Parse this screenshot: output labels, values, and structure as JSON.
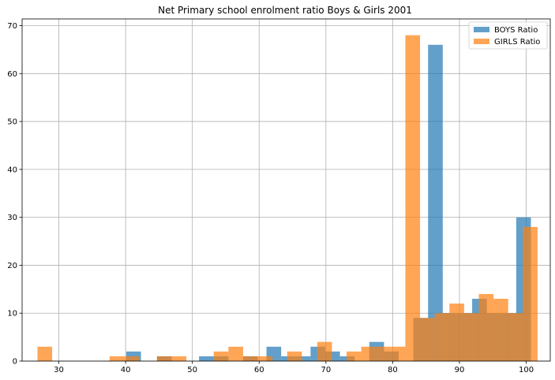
{
  "chart_data": {
    "type": "bar",
    "title": "Net Primary school enrolment ratio Boys & Girls 2001",
    "xlabel": "",
    "ylabel": "",
    "xlim": [
      24.5,
      103.6
    ],
    "ylim": [
      0,
      71.4
    ],
    "xticks": [
      30,
      40,
      50,
      60,
      70,
      80,
      90,
      100
    ],
    "yticks": [
      0,
      10,
      20,
      30,
      40,
      50,
      60,
      70
    ],
    "grid": true,
    "legend_position": "top-right",
    "bin_width": 2.2,
    "series": [
      {
        "name": "BOYS Ratio",
        "color": "#1f77b4",
        "opacity": 0.7,
        "bins": [
          {
            "x": 40.1,
            "value": 2
          },
          {
            "x": 44.7,
            "value": 1
          },
          {
            "x": 51.0,
            "value": 1
          },
          {
            "x": 53.2,
            "value": 1
          },
          {
            "x": 57.6,
            "value": 1
          },
          {
            "x": 61.1,
            "value": 3
          },
          {
            "x": 63.3,
            "value": 1
          },
          {
            "x": 65.5,
            "value": 1
          },
          {
            "x": 67.7,
            "value": 3
          },
          {
            "x": 69.9,
            "value": 2
          },
          {
            "x": 72.1,
            "value": 1
          },
          {
            "x": 76.5,
            "value": 4
          },
          {
            "x": 78.7,
            "value": 2
          },
          {
            "x": 83.1,
            "value": 9
          },
          {
            "x": 85.3,
            "value": 66
          },
          {
            "x": 87.5,
            "value": 10
          },
          {
            "x": 89.7,
            "value": 10
          },
          {
            "x": 91.9,
            "value": 13
          },
          {
            "x": 94.1,
            "value": 10
          },
          {
            "x": 96.3,
            "value": 10
          },
          {
            "x": 98.5,
            "value": 30
          }
        ]
      },
      {
        "name": "GIRLS Ratio",
        "color": "#ff7f0e",
        "opacity": 0.7,
        "bins": [
          {
            "x": 26.8,
            "value": 3
          },
          {
            "x": 37.6,
            "value": 1
          },
          {
            "x": 39.8,
            "value": 1
          },
          {
            "x": 44.7,
            "value": 1
          },
          {
            "x": 46.9,
            "value": 1
          },
          {
            "x": 53.2,
            "value": 2
          },
          {
            "x": 55.4,
            "value": 3
          },
          {
            "x": 57.6,
            "value": 1
          },
          {
            "x": 59.8,
            "value": 1
          },
          {
            "x": 64.2,
            "value": 2
          },
          {
            "x": 68.7,
            "value": 4
          },
          {
            "x": 73.1,
            "value": 2
          },
          {
            "x": 75.3,
            "value": 3
          },
          {
            "x": 77.5,
            "value": 3
          },
          {
            "x": 79.7,
            "value": 3
          },
          {
            "x": 81.9,
            "value": 68
          },
          {
            "x": 84.1,
            "value": 9
          },
          {
            "x": 86.3,
            "value": 10
          },
          {
            "x": 88.5,
            "value": 12
          },
          {
            "x": 90.7,
            "value": 10
          },
          {
            "x": 92.9,
            "value": 14
          },
          {
            "x": 95.1,
            "value": 13
          },
          {
            "x": 97.3,
            "value": 10
          },
          {
            "x": 99.5,
            "value": 28
          }
        ]
      }
    ]
  }
}
